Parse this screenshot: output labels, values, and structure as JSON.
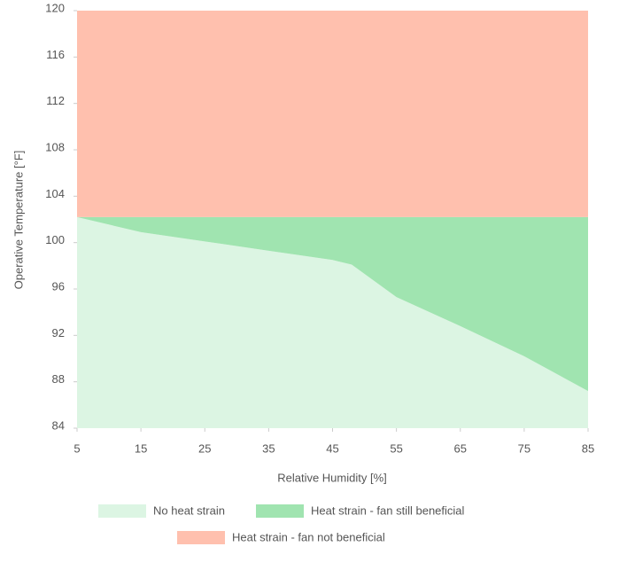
{
  "chart_data": {
    "type": "area",
    "x_label": "Relative Humidity [%]",
    "y_label": "Operative Temperature [°F]",
    "x": [
      5,
      15,
      25,
      35,
      45,
      48,
      55,
      65,
      75,
      85
    ],
    "series": [
      {
        "name": "No heat strain",
        "color": "#dcf5e3",
        "values": [
          102.2,
          100.9,
          100.1,
          99.3,
          98.5,
          98.1,
          95.3,
          92.8,
          90.2,
          87.2
        ]
      },
      {
        "name": "Heat strain - fan still beneficial",
        "color": "#a0e4b0",
        "values": [
          102.2,
          102.2,
          102.2,
          102.2,
          102.2,
          102.2,
          102.2,
          102.2,
          102.2,
          102.2
        ]
      },
      {
        "name": "Heat strain - fan not beneficial",
        "color": "#ffc0ae",
        "values": [
          120,
          120,
          120,
          120,
          120,
          120,
          120,
          120,
          120,
          120
        ]
      }
    ],
    "xlim": [
      5,
      85
    ],
    "xticks": [
      5,
      15,
      25,
      35,
      45,
      55,
      65,
      75,
      85
    ],
    "ylim": [
      84,
      120
    ],
    "yticks": [
      84,
      88,
      92,
      96,
      100,
      104,
      108,
      112,
      116,
      120
    ]
  }
}
